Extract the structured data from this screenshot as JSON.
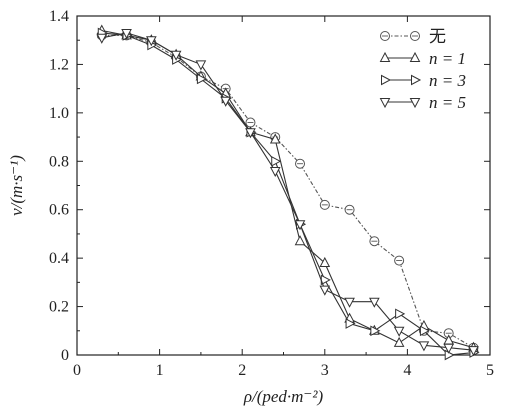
{
  "chart_data": {
    "type": "line",
    "xlabel": "ρ/(ped·m⁻²)",
    "ylabel": "v/(m·s⁻¹)",
    "xlim": [
      0,
      5
    ],
    "ylim": [
      0,
      1.4
    ],
    "xticks": [
      1,
      2,
      3,
      4,
      5
    ],
    "xtick_labels": [
      "1",
      "2",
      "3",
      "4",
      "5"
    ],
    "yticks": [
      0,
      0.2,
      0.4,
      0.6,
      0.8,
      1.0,
      1.2,
      1.4
    ],
    "ytick_labels": [
      "0",
      "0.2",
      "0.4",
      "0.6",
      "0.8",
      "1.0",
      "1.2",
      "1.4"
    ],
    "origin_x_label": "0",
    "grid": false,
    "legend_position": "top-right",
    "series": [
      {
        "name": "无",
        "marker": "circle",
        "line": "dashed",
        "color": "#555555",
        "x": [
          0.3,
          0.6,
          0.9,
          1.2,
          1.5,
          1.8,
          2.1,
          2.4,
          2.7,
          3.0,
          3.3,
          3.6,
          3.9,
          4.2,
          4.5,
          4.8
        ],
        "y": [
          1.32,
          1.32,
          1.29,
          1.23,
          1.15,
          1.1,
          0.96,
          0.9,
          0.79,
          0.62,
          0.6,
          0.47,
          0.39,
          0.1,
          0.09,
          0.03
        ]
      },
      {
        "name": "n = 1",
        "marker": "triangle-up",
        "line": "solid",
        "color": "#333333",
        "x": [
          0.3,
          0.6,
          0.9,
          1.2,
          1.5,
          1.8,
          2.1,
          2.4,
          2.7,
          3.0,
          3.3,
          3.6,
          3.9,
          4.2,
          4.5,
          4.8
        ],
        "y": [
          1.34,
          1.32,
          1.3,
          1.24,
          1.15,
          1.08,
          0.92,
          0.89,
          0.47,
          0.38,
          0.15,
          0.1,
          0.05,
          0.12,
          0.06,
          0.03
        ]
      },
      {
        "name": "n = 3",
        "marker": "triangle-right",
        "line": "solid",
        "color": "#333333",
        "x": [
          0.3,
          0.6,
          0.9,
          1.2,
          1.5,
          1.8,
          2.1,
          2.4,
          2.7,
          3.0,
          3.3,
          3.6,
          3.9,
          4.2,
          4.5,
          4.8
        ],
        "y": [
          1.33,
          1.32,
          1.28,
          1.22,
          1.14,
          1.06,
          0.92,
          0.8,
          0.54,
          0.31,
          0.13,
          0.1,
          0.17,
          0.1,
          0.0,
          0.01
        ]
      },
      {
        "name": "n = 5",
        "marker": "triangle-down",
        "line": "solid",
        "color": "#333333",
        "x": [
          0.3,
          0.6,
          0.9,
          1.2,
          1.5,
          1.8,
          2.1,
          2.4,
          2.7,
          3.0,
          3.3,
          3.6,
          3.9,
          4.2,
          4.5,
          4.8
        ],
        "y": [
          1.31,
          1.33,
          1.3,
          1.24,
          1.2,
          1.05,
          0.92,
          0.76,
          0.54,
          0.27,
          0.22,
          0.22,
          0.1,
          0.04,
          0.03,
          0.02
        ]
      }
    ]
  }
}
